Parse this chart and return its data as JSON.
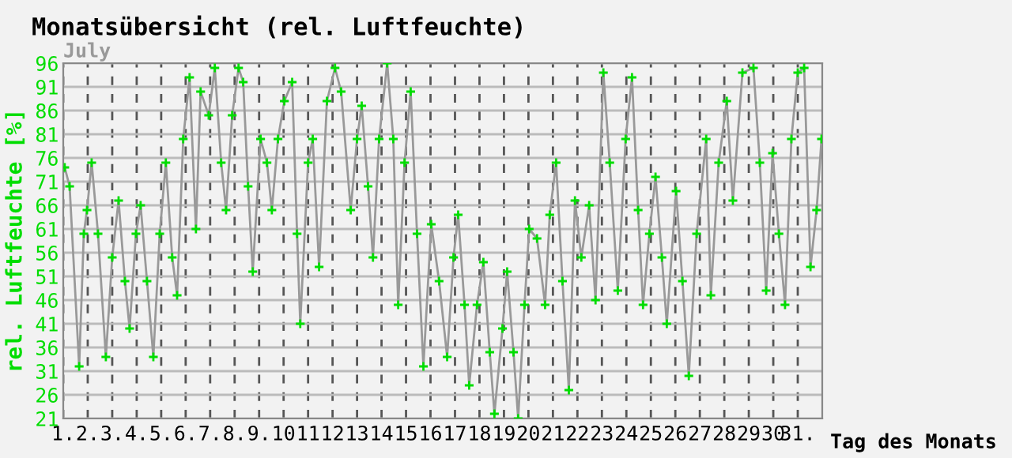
{
  "chart_data": {
    "type": "line",
    "title": "Monatsübersicht (rel. Luftfeuchte)",
    "subtitle": "July",
    "xlabel": "Tag des Monats",
    "ylabel": "rel. Luftfeuchte [%]",
    "xlim": [
      1,
      32
    ],
    "xticks": [
      {
        "value": 1,
        "label": "1."
      },
      {
        "value": 2,
        "label": "2."
      },
      {
        "value": 3,
        "label": "3."
      },
      {
        "value": 4,
        "label": "4."
      },
      {
        "value": 5,
        "label": "5."
      },
      {
        "value": 6,
        "label": "6."
      },
      {
        "value": 7,
        "label": "7."
      },
      {
        "value": 8,
        "label": "8."
      },
      {
        "value": 9,
        "label": "9."
      },
      {
        "value": 10,
        "label": "10"
      },
      {
        "value": 11,
        "label": "11"
      },
      {
        "value": 12,
        "label": "12"
      },
      {
        "value": 13,
        "label": "13"
      },
      {
        "value": 14,
        "label": "14"
      },
      {
        "value": 15,
        "label": "15"
      },
      {
        "value": 16,
        "label": "16"
      },
      {
        "value": 17,
        "label": "17"
      },
      {
        "value": 18,
        "label": "18"
      },
      {
        "value": 19,
        "label": "19"
      },
      {
        "value": 20,
        "label": "20"
      },
      {
        "value": 21,
        "label": "21"
      },
      {
        "value": 22,
        "label": "22"
      },
      {
        "value": 23,
        "label": "23"
      },
      {
        "value": 24,
        "label": "24"
      },
      {
        "value": 25,
        "label": "25"
      },
      {
        "value": 26,
        "label": "26"
      },
      {
        "value": 27,
        "label": "27"
      },
      {
        "value": 28,
        "label": "28"
      },
      {
        "value": 29,
        "label": "29"
      },
      {
        "value": 30,
        "label": "30"
      },
      {
        "value": 31,
        "label": "31."
      }
    ],
    "ylim": [
      21,
      96
    ],
    "yticks": [
      21,
      26,
      31,
      36,
      41,
      46,
      51,
      56,
      61,
      66,
      71,
      76,
      81,
      86,
      91,
      96
    ],
    "grid": true,
    "marker": "cross",
    "line_style": "solid",
    "series": [
      {
        "color": "#999999",
        "x": [
          1.06,
          1.26,
          1.65,
          1.84,
          1.97,
          2.16,
          2.42,
          2.74,
          3.0,
          3.26,
          3.52,
          3.71,
          3.97,
          4.16,
          4.42,
          4.68,
          4.94,
          5.19,
          5.45,
          5.65,
          5.9,
          6.16,
          6.42,
          6.61,
          6.94,
          7.19,
          7.45,
          7.65,
          7.9,
          8.16,
          8.35,
          8.55,
          8.74,
          9.06,
          9.32,
          9.52,
          9.77,
          10.03,
          10.35,
          10.55,
          10.68,
          11.0,
          11.19,
          11.45,
          11.77,
          12.1,
          12.35,
          12.74,
          13.0,
          13.19,
          13.45,
          13.65,
          13.9,
          14.23,
          14.48,
          14.68,
          14.94,
          15.19,
          15.45,
          15.71,
          16.03,
          16.35,
          16.68,
          16.94,
          17.13,
          17.39,
          17.58,
          17.9,
          18.16,
          18.42,
          18.61,
          18.94,
          19.13,
          19.39,
          19.58,
          19.84,
          20.03,
          20.35,
          20.68,
          20.87,
          21.13,
          21.39,
          21.65,
          21.9,
          22.16,
          22.48,
          22.74,
          23.06,
          23.32,
          23.65,
          23.97,
          24.23,
          24.48,
          24.68,
          24.94,
          25.19,
          25.45,
          25.65,
          26.03,
          26.29,
          26.55,
          26.87,
          27.26,
          27.45,
          27.77,
          28.1,
          28.35,
          28.74,
          29.19,
          29.45,
          29.71,
          29.97,
          30.23,
          30.48,
          30.74,
          31.0,
          31.26,
          31.52,
          31.77,
          31.97
        ],
        "values": [
          74,
          70,
          32,
          60,
          65,
          75,
          60,
          34,
          55,
          67,
          50,
          40,
          60,
          66,
          50,
          34,
          60,
          75,
          55,
          47,
          80,
          93,
          61,
          90,
          85,
          95,
          75,
          65,
          85,
          95,
          92,
          70,
          52,
          80,
          75,
          65,
          80,
          88,
          92,
          60,
          41,
          75,
          80,
          53,
          88,
          95,
          90,
          65,
          80,
          87,
          70,
          55,
          80,
          96,
          80,
          45,
          75,
          90,
          60,
          32,
          62,
          50,
          34,
          55,
          64,
          45,
          28,
          45,
          54,
          35,
          22,
          40,
          52,
          35,
          21,
          45,
          61,
          59,
          45,
          64,
          75,
          50,
          27,
          67,
          55,
          66,
          46,
          94,
          75,
          48,
          80,
          93,
          65,
          45,
          60,
          72,
          55,
          41,
          69,
          50,
          30,
          60,
          80,
          47,
          75,
          88,
          67,
          94,
          95,
          75,
          48,
          77,
          60,
          45,
          80,
          94,
          95,
          53,
          65,
          80
        ]
      }
    ]
  }
}
